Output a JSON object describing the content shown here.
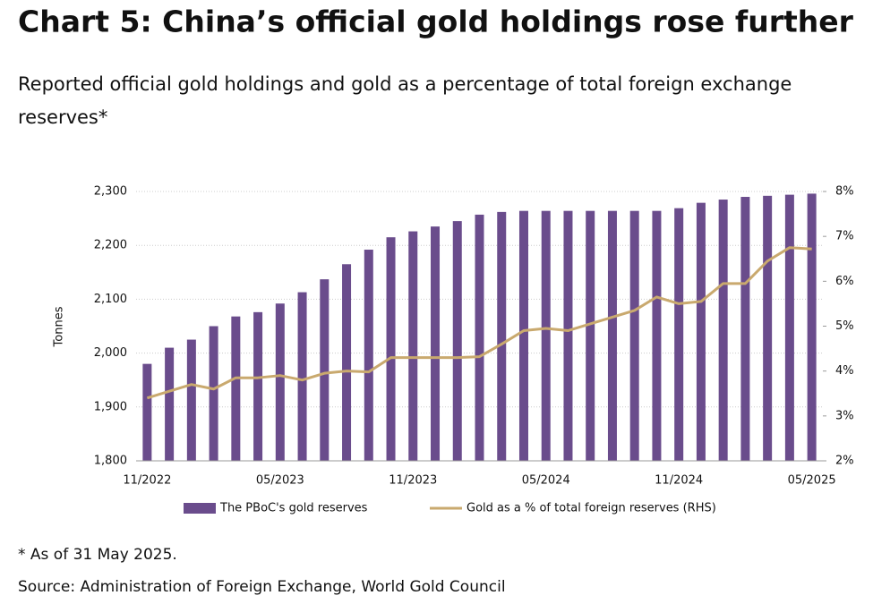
{
  "chart_data": {
    "type": "bar_line",
    "title": "Chart 5: China’s official gold holdings rose further",
    "subtitle": [
      "Reported official gold holdings and gold as a percentage of total foreign exchange",
      "reserves*"
    ],
    "y_label": "Tonnes",
    "categories": [
      "11/2022",
      null,
      null,
      null,
      null,
      null,
      "05/2023",
      null,
      null,
      null,
      null,
      null,
      "11/2023",
      null,
      null,
      null,
      null,
      null,
      "05/2024",
      null,
      null,
      null,
      null,
      null,
      "11/2024",
      null,
      null,
      null,
      null,
      null,
      "05/2025"
    ],
    "series": [
      {
        "name": "The PBoC's gold reserves",
        "type": "bar",
        "color": "#6a4c8c",
        "values": [
          1980,
          2010,
          2025,
          2050,
          2068,
          2076,
          2092,
          2113,
          2137,
          2165,
          2192,
          2215,
          2226,
          2235,
          2245,
          2257,
          2262,
          2264,
          2264,
          2264,
          2264,
          2264,
          2264,
          2264,
          2269,
          2279,
          2285,
          2290,
          2292,
          2294,
          2296
        ]
      },
      {
        "name": "Gold as a % of total foreign reserves (RHS)",
        "type": "line",
        "axis": "y2",
        "color": "#c9a96e",
        "values": [
          3.4,
          3.55,
          3.7,
          3.6,
          3.85,
          3.85,
          3.9,
          3.8,
          3.95,
          4.0,
          3.98,
          4.3,
          4.3,
          4.3,
          4.3,
          4.32,
          4.6,
          4.9,
          4.95,
          4.9,
          5.05,
          5.2,
          5.35,
          5.65,
          5.5,
          5.55,
          5.95,
          5.95,
          6.45,
          6.75,
          6.72
        ]
      }
    ],
    "ylim": [
      1800,
      2300
    ],
    "yticks": [
      {
        "value": 1800,
        "label": "1,800"
      },
      {
        "value": 1900,
        "label": "1,900"
      },
      {
        "value": 2000,
        "label": "2,000"
      },
      {
        "value": 2100,
        "label": "2,100"
      },
      {
        "value": 2200,
        "label": "2,200"
      },
      {
        "value": 2300,
        "label": "2,300"
      }
    ],
    "y2lim": [
      2,
      8
    ],
    "y2ticks": [
      {
        "value": 2,
        "label": "2%"
      },
      {
        "value": 3,
        "label": "3%"
      },
      {
        "value": 4,
        "label": "4%"
      },
      {
        "value": 5,
        "label": "5%"
      },
      {
        "value": 6,
        "label": "6%"
      },
      {
        "value": 7,
        "label": "7%"
      },
      {
        "value": 8,
        "label": "8%"
      }
    ],
    "grid": true,
    "footnote": "* As of 31 May 2025.",
    "source": "Source: Administration of Foreign Exchange, World Gold Council"
  }
}
